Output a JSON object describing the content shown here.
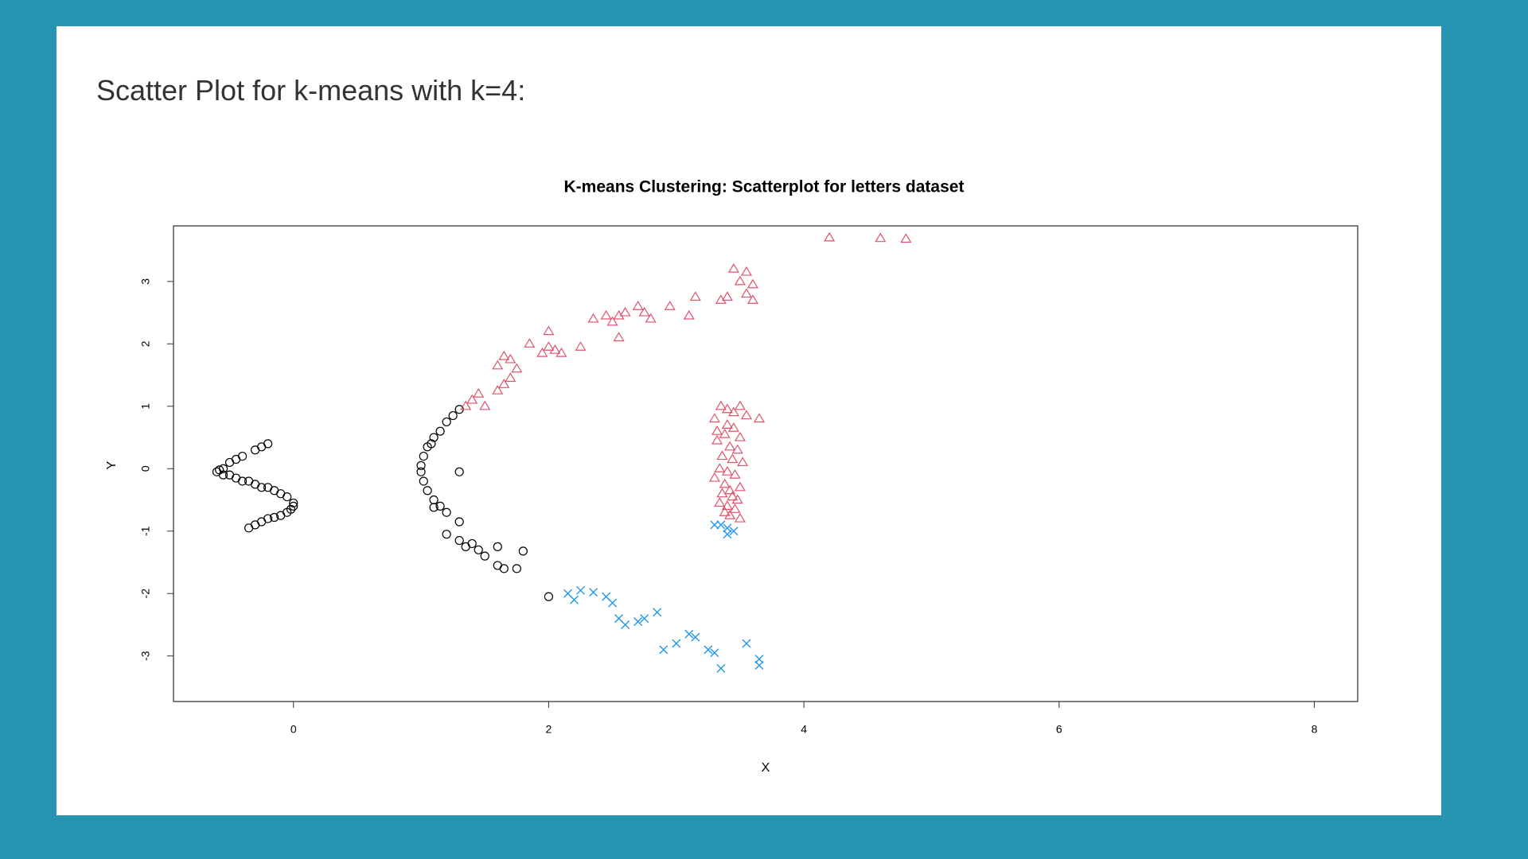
{
  "heading": "Scatter Plot for k-means with k=4:",
  "chart_data": {
    "type": "scatter",
    "title": "K-means Clustering: Scatterplot for letters dataset",
    "x_label": "X",
    "y_label": "Y",
    "xlim": [
      -0.94,
      8.34
    ],
    "ylim": [
      -3.73,
      3.89
    ],
    "xticks": [
      0,
      2,
      4,
      6,
      8
    ],
    "yticks": [
      -3,
      -2,
      -1,
      0,
      1,
      2,
      3
    ],
    "series": [
      {
        "color": "#000000",
        "marker": "circle",
        "x": [
          -0.25,
          -0.3,
          -0.4,
          -0.5,
          -0.55,
          -0.6,
          -0.55,
          -0.45,
          -0.35,
          -0.25,
          -0.15,
          -0.05,
          0.0,
          -0.02,
          -0.1,
          -0.2,
          -0.3,
          -0.35,
          -0.2,
          -0.45,
          -0.58,
          -0.4,
          -0.2,
          -0.1,
          0.0,
          -0.05,
          -0.15,
          -0.25,
          -0.5,
          -0.3,
          1.3,
          1.25,
          1.2,
          1.15,
          1.1,
          1.05,
          1.02,
          1.0,
          1.0,
          1.02,
          1.05,
          1.1,
          1.15,
          1.2,
          1.3,
          1.2,
          1.3,
          1.4,
          1.45,
          1.35,
          1.6,
          1.8,
          1.6,
          1.65,
          1.75,
          2.0,
          1.5,
          1.3,
          1.08,
          1.1
        ],
        "y": [
          0.35,
          0.3,
          0.2,
          0.1,
          0.0,
          -0.05,
          -0.1,
          -0.15,
          -0.2,
          -0.3,
          -0.35,
          -0.45,
          -0.55,
          -0.65,
          -0.75,
          -0.8,
          -0.9,
          -0.95,
          0.4,
          0.15,
          -0.02,
          -0.2,
          -0.3,
          -0.4,
          -0.6,
          -0.7,
          -0.78,
          -0.85,
          -0.1,
          -0.25,
          0.95,
          0.85,
          0.75,
          0.6,
          0.5,
          0.35,
          0.2,
          0.05,
          -0.05,
          -0.2,
          -0.35,
          -0.5,
          -0.6,
          -0.7,
          -0.85,
          -1.05,
          -1.15,
          -1.2,
          -1.3,
          -1.25,
          -1.25,
          -1.32,
          -1.55,
          -1.6,
          -1.6,
          -2.05,
          -1.4,
          -0.05,
          0.4,
          -0.62
        ]
      },
      {
        "color": "#df536b",
        "marker": "triangle",
        "x": [
          1.35,
          1.4,
          1.45,
          1.5,
          1.6,
          1.65,
          1.7,
          1.6,
          1.7,
          1.75,
          1.65,
          1.85,
          1.95,
          2.0,
          2.0,
          2.05,
          2.1,
          2.25,
          2.35,
          2.45,
          2.5,
          2.55,
          2.55,
          2.6,
          2.7,
          2.75,
          2.8,
          2.95,
          3.1,
          3.15,
          3.35,
          3.4,
          3.45,
          3.5,
          3.55,
          3.6,
          3.6,
          3.55,
          4.2,
          4.6,
          4.8,
          3.35,
          3.4,
          3.45,
          3.5,
          3.55,
          3.3,
          3.4,
          3.45,
          3.38,
          3.5,
          3.32,
          3.42,
          3.48,
          3.36,
          3.44,
          3.52,
          3.34,
          3.4,
          3.46,
          3.3,
          3.38,
          3.5,
          3.42,
          3.36,
          3.44,
          3.48,
          3.34,
          3.4,
          3.46,
          3.38,
          3.42,
          3.65,
          3.32,
          3.5
        ],
        "y": [
          1.0,
          1.1,
          1.2,
          1.0,
          1.25,
          1.35,
          1.45,
          1.65,
          1.75,
          1.6,
          1.8,
          2.0,
          1.85,
          2.2,
          1.95,
          1.9,
          1.85,
          1.95,
          2.4,
          2.45,
          2.35,
          2.1,
          2.45,
          2.5,
          2.6,
          2.5,
          2.4,
          2.6,
          2.45,
          2.75,
          2.7,
          2.75,
          3.2,
          3.0,
          3.15,
          2.95,
          2.7,
          2.8,
          3.7,
          3.69,
          3.68,
          1.0,
          0.95,
          0.9,
          1.0,
          0.85,
          0.8,
          0.7,
          0.65,
          0.55,
          0.5,
          0.45,
          0.35,
          0.3,
          0.2,
          0.15,
          0.1,
          0.0,
          -0.05,
          -0.1,
          -0.15,
          -0.25,
          -0.3,
          -0.35,
          -0.4,
          -0.45,
          -0.5,
          -0.55,
          -0.6,
          -0.65,
          -0.7,
          -0.75,
          0.8,
          0.6,
          -0.8
        ]
      },
      {
        "color": "#2297e6",
        "marker": "x",
        "x": [
          3.35,
          3.4,
          3.45,
          3.4,
          3.3,
          2.15,
          2.2,
          2.25,
          2.35,
          2.45,
          2.5,
          2.55,
          2.6,
          2.7,
          2.75,
          2.85,
          2.9,
          3.0,
          3.1,
          3.15,
          3.25,
          3.3,
          3.35,
          3.55,
          3.65,
          3.65
        ],
        "y": [
          -0.9,
          -0.95,
          -1.0,
          -1.05,
          -0.9,
          -2.0,
          -2.1,
          -1.95,
          -1.98,
          -2.05,
          -2.15,
          -2.4,
          -2.5,
          -2.45,
          -2.4,
          -2.3,
          -2.9,
          -2.8,
          -2.65,
          -2.7,
          -2.9,
          -2.95,
          -3.2,
          -2.8,
          -3.05,
          -3.15
        ]
      }
    ]
  }
}
